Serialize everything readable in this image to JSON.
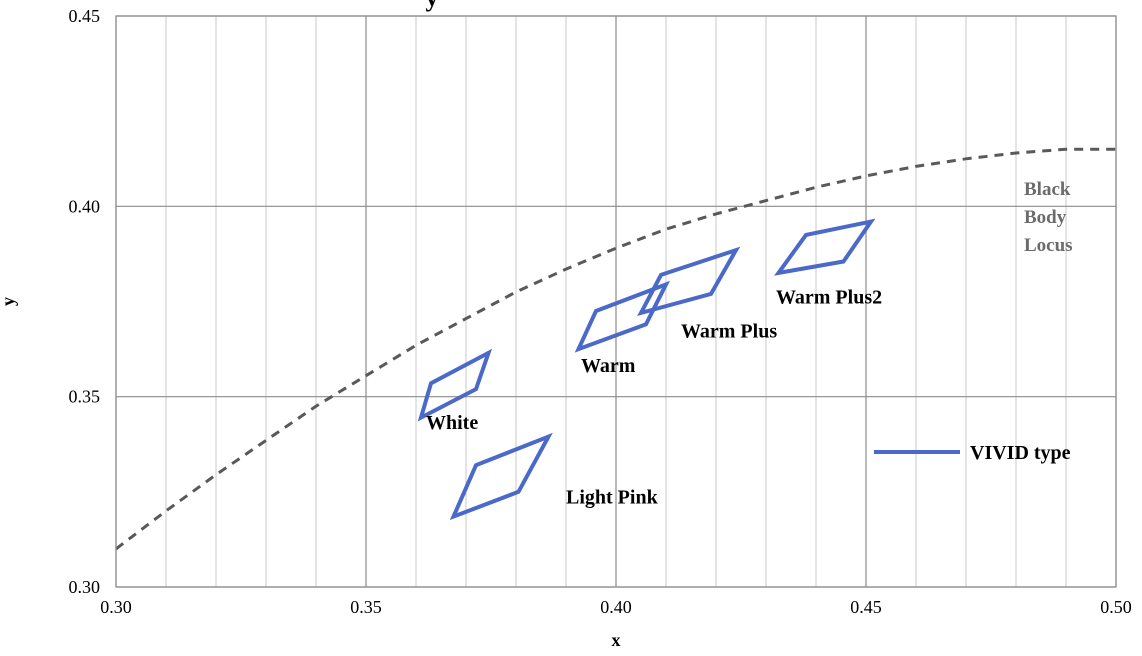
{
  "colors": {
    "series": "#4a69c8",
    "locus": "#595959",
    "major_grid": "#8c8c8c",
    "minor_grid": "#c8c8c8",
    "locus_label": "#6b6b6b"
  },
  "chart_data": {
    "type": "scatter",
    "title": "y",
    "xlabel": "x",
    "ylabel": "y",
    "xlim": [
      0.3,
      0.5
    ],
    "ylim": [
      0.3,
      0.45
    ],
    "x_major_ticks": [
      0.3,
      0.35,
      0.4,
      0.45,
      0.5
    ],
    "x_tick_labels": [
      "0.30",
      "0.35",
      "0.40",
      "0.45",
      "0.50"
    ],
    "x_minor_step": 0.01,
    "y_major_ticks": [
      0.3,
      0.35,
      0.4,
      0.45
    ],
    "y_tick_labels": [
      "0.30",
      "0.35",
      "0.40",
      "0.45"
    ],
    "grid": true,
    "legend": {
      "position": "right",
      "entries": [
        "VIVID type"
      ]
    },
    "series": [
      {
        "name": "VIVID type",
        "style": "solid",
        "regions": [
          {
            "label": "White",
            "points": [
              [
                0.361,
                0.3445
              ],
              [
                0.363,
                0.3535
              ],
              [
                0.3745,
                0.3615
              ],
              [
                0.372,
                0.352
              ]
            ]
          },
          {
            "label": "Light Pink",
            "points": [
              [
                0.3675,
                0.3185
              ],
              [
                0.372,
                0.332
              ],
              [
                0.3865,
                0.3395
              ],
              [
                0.3805,
                0.325
              ]
            ]
          },
          {
            "label": "Warm",
            "points": [
              [
                0.3925,
                0.3625
              ],
              [
                0.396,
                0.3725
              ],
              [
                0.41,
                0.3795
              ],
              [
                0.406,
                0.369
              ]
            ]
          },
          {
            "label": "Warm Plus",
            "points": [
              [
                0.405,
                0.372
              ],
              [
                0.409,
                0.382
              ],
              [
                0.424,
                0.3885
              ],
              [
                0.419,
                0.377
              ]
            ]
          },
          {
            "label": "Warm Plus2",
            "points": [
              [
                0.4325,
                0.3825
              ],
              [
                0.438,
                0.3925
              ],
              [
                0.451,
                0.396
              ],
              [
                0.4455,
                0.3855
              ]
            ]
          }
        ]
      },
      {
        "name": "Black Body Locus",
        "style": "dashed",
        "points": [
          [
            0.3,
            0.31
          ],
          [
            0.31,
            0.32
          ],
          [
            0.32,
            0.3295
          ],
          [
            0.33,
            0.3385
          ],
          [
            0.34,
            0.3475
          ],
          [
            0.35,
            0.3555
          ],
          [
            0.36,
            0.3635
          ],
          [
            0.37,
            0.3705
          ],
          [
            0.38,
            0.3775
          ],
          [
            0.39,
            0.3835
          ],
          [
            0.4,
            0.389
          ],
          [
            0.41,
            0.394
          ],
          [
            0.42,
            0.398
          ],
          [
            0.43,
            0.4015
          ],
          [
            0.44,
            0.405
          ],
          [
            0.45,
            0.408
          ],
          [
            0.46,
            0.4105
          ],
          [
            0.47,
            0.4125
          ],
          [
            0.48,
            0.414
          ],
          [
            0.49,
            0.415
          ],
          [
            0.5,
            0.415
          ]
        ]
      }
    ],
    "annotations": [
      {
        "text": "White",
        "x": 0.362,
        "y": 0.3415
      },
      {
        "text": "Light Pink",
        "x": 0.39,
        "y": 0.322
      },
      {
        "text": "Warm",
        "x": 0.393,
        "y": 0.3565
      },
      {
        "text": "Warm Plus",
        "x": 0.413,
        "y": 0.3655
      },
      {
        "text": "Warm Plus2",
        "x": 0.432,
        "y": 0.3745
      }
    ],
    "locus_label_lines": [
      "Black",
      "Body",
      "Locus"
    ]
  }
}
